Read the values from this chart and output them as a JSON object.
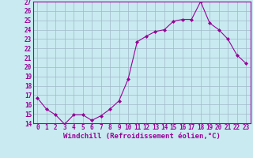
{
  "x": [
    0,
    1,
    2,
    3,
    4,
    5,
    6,
    7,
    8,
    9,
    10,
    11,
    12,
    13,
    14,
    15,
    16,
    17,
    18,
    19,
    20,
    21,
    22,
    23
  ],
  "y": [
    16.7,
    15.5,
    14.9,
    13.9,
    14.9,
    14.9,
    14.3,
    14.8,
    15.5,
    16.4,
    18.7,
    22.7,
    23.3,
    23.8,
    24.0,
    24.9,
    25.1,
    25.1,
    27.0,
    24.7,
    24.0,
    23.0,
    21.3,
    20.4
  ],
  "xlabel": "Windchill (Refroidissement éolien,°C)",
  "ylim": [
    14,
    27
  ],
  "yticks": [
    14,
    15,
    16,
    17,
    18,
    19,
    20,
    21,
    22,
    23,
    24,
    25,
    26,
    27
  ],
  "xticks": [
    0,
    1,
    2,
    3,
    4,
    5,
    6,
    7,
    8,
    9,
    10,
    11,
    12,
    13,
    14,
    15,
    16,
    17,
    18,
    19,
    20,
    21,
    22,
    23
  ],
  "xlim": [
    -0.5,
    23.5
  ],
  "line_color": "#990099",
  "marker": "D",
  "marker_size": 2.0,
  "bg_color": "#c8eaf0",
  "grid_color": "#a0b8c8",
  "tick_label_fontsize": 5.5,
  "xlabel_fontsize": 6.5
}
